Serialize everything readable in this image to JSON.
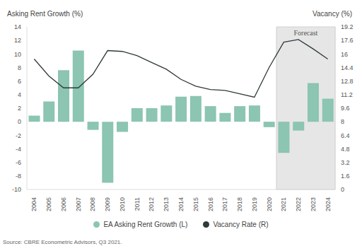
{
  "chart_data": {
    "type": "bar",
    "ylabel": "Asking Rent Growth (%)",
    "y2label": "Vacancy (%)",
    "source": "Source: CBRE Econometric Advisors, Q3 2021.",
    "categories": [
      "2004",
      "2005",
      "2006",
      "2007",
      "2008",
      "2009",
      "2010",
      "2011",
      "2012",
      "2013",
      "2014",
      "2015",
      "2016",
      "2017",
      "2018",
      "2019",
      "2020",
      "2021",
      "2022",
      "2023",
      "2024"
    ],
    "series": [
      {
        "name": "EA Asking Rent Growth (L)",
        "type": "bar",
        "color": "#8cc5b1",
        "values": [
          0.9,
          3.0,
          7.6,
          10.5,
          -1.2,
          -9.0,
          -1.5,
          2.0,
          2.0,
          2.4,
          3.7,
          3.8,
          2.3,
          1.3,
          2.3,
          2.4,
          -0.8,
          -4.6,
          -1.3,
          5.7,
          3.4
        ]
      },
      {
        "name": "Vacancy Rate (R)",
        "type": "line",
        "axis": "y2",
        "color": "#2f3a39",
        "values": [
          15.4,
          13.4,
          12.0,
          12.0,
          13.6,
          16.4,
          16.3,
          15.8,
          15.0,
          14.2,
          13.0,
          12.2,
          11.8,
          11.7,
          11.3,
          10.9,
          14.4,
          17.4,
          17.7,
          16.6,
          15.4
        ]
      }
    ],
    "ylim": [
      -10,
      14
    ],
    "yticks": [
      -10,
      -8,
      -6,
      -4,
      -2,
      0,
      2,
      4,
      6,
      8,
      10,
      12,
      14
    ],
    "y2lim": [
      0,
      19.2
    ],
    "y2ticks": [
      0,
      1.6,
      3.2,
      4.8,
      6.4,
      8,
      9.6,
      11.2,
      12.8,
      14.4,
      16,
      17.6,
      19.2
    ],
    "annotations": [
      {
        "text": "Forecast",
        "x_start": "2021",
        "x_end": "2024"
      }
    ],
    "grid": false,
    "legend": "bottom"
  }
}
